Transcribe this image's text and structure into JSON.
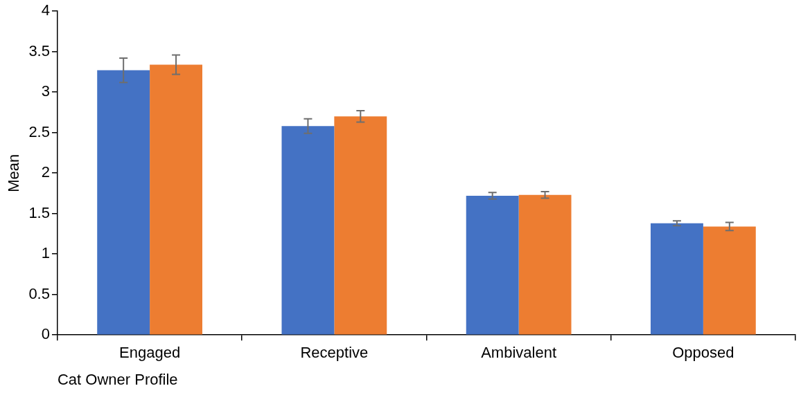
{
  "chart_data": {
    "type": "bar",
    "xlabel": "Cat Owner Profile",
    "ylabel": "Mean",
    "categories": [
      "Engaged",
      "Receptive",
      "Ambivalent",
      "Opposed"
    ],
    "series": [
      {
        "color": "#4472c4",
        "values": [
          3.27,
          2.58,
          1.72,
          1.38
        ],
        "errors": [
          0.15,
          0.09,
          0.04,
          0.03
        ]
      },
      {
        "color": "#ed7d31",
        "values": [
          3.34,
          2.7,
          1.73,
          1.34
        ],
        "errors": [
          0.12,
          0.07,
          0.04,
          0.05
        ]
      }
    ],
    "ylim": [
      0,
      4
    ],
    "yticks": [
      0,
      0.5,
      1,
      1.5,
      2,
      2.5,
      3,
      3.5,
      4
    ],
    "grid": false,
    "legend": false
  }
}
